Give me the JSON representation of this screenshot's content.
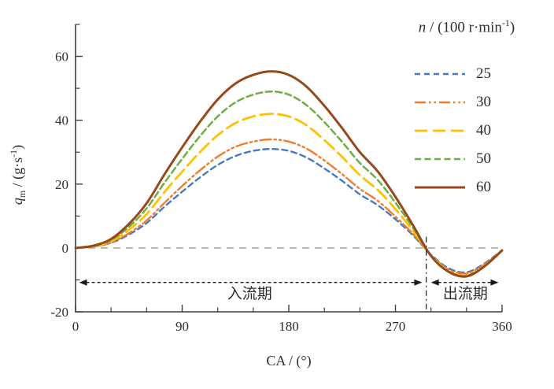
{
  "figure": {
    "background": "#ffffff",
    "axis_color": "#3d3d3d",
    "text_color": "#2e2e2e"
  },
  "chart_data": {
    "type": "line",
    "xlabel": "CA / (°)",
    "ylabel": {
      "var": "q",
      "sub": "m",
      "mid": " / (g·s",
      "sup": "-1",
      "post": ")"
    },
    "xlim": [
      0,
      360
    ],
    "ylim": [
      -20,
      70
    ],
    "x_ticks": [
      0,
      90,
      180,
      270,
      360
    ],
    "x_minor_step": 30,
    "y_ticks": [
      -20,
      0,
      20,
      40,
      60
    ],
    "y_minor_ticks": [
      -10,
      10,
      30,
      50,
      70
    ],
    "grid": false,
    "x": [
      0,
      15,
      30,
      45,
      60,
      75,
      90,
      105,
      120,
      135,
      150,
      165,
      180,
      195,
      210,
      225,
      240,
      255,
      270,
      285,
      300,
      315,
      330,
      345,
      360
    ],
    "series": [
      {
        "label": "25",
        "color": "#4778C6",
        "dash": "7 5",
        "width": 2.4,
        "values": [
          0,
          0.4,
          1.6,
          4.2,
          7.8,
          12.9,
          17.6,
          22.1,
          26,
          28.8,
          30.4,
          31,
          30.4,
          28.3,
          24.9,
          21,
          16.8,
          13.4,
          9,
          3.9,
          -2.1,
          -6.4,
          -7.6,
          -4.9,
          -0.7
        ]
      },
      {
        "label": "30",
        "color": "#ED7D31",
        "dash": "14 4 2.5 4 2.5 4",
        "width": 2.4,
        "values": [
          0,
          0.4,
          1.7,
          4.6,
          8.6,
          14.1,
          19.4,
          24.3,
          28.6,
          31.7,
          33.3,
          34,
          33.3,
          31.1,
          27.4,
          23.1,
          18.5,
          14.8,
          9.8,
          4.3,
          -2.2,
          -6.8,
          -8,
          -5.2,
          -0.7
        ]
      },
      {
        "label": "40",
        "color": "#FFC000",
        "dash": "16 7",
        "width": 2.8,
        "values": [
          0,
          0.5,
          2.1,
          5.7,
          10.6,
          17.5,
          23.9,
          30,
          35.3,
          39.1,
          41.2,
          42,
          41.2,
          38.4,
          33.8,
          28.5,
          22.8,
          18.2,
          12.2,
          5.3,
          -2.4,
          -7.3,
          -8.6,
          -5.6,
          -0.8
        ]
      },
      {
        "label": "50",
        "color": "#6EAE45",
        "dash": "8 4.5",
        "width": 2.5,
        "values": [
          0,
          0.6,
          2.5,
          6.6,
          12.4,
          20.4,
          27.9,
          35,
          41.2,
          45.6,
          48,
          49,
          48,
          44.7,
          39.4,
          33.2,
          26.6,
          21.3,
          14.2,
          6.2,
          -2.5,
          -7.4,
          -8.7,
          -5.7,
          -0.8
        ]
      },
      {
        "label": "60",
        "color": "#98491B",
        "dash": "",
        "width": 3,
        "values": [
          0,
          0.7,
          2.8,
          7.5,
          14,
          23,
          31.5,
          39.5,
          46.5,
          51.5,
          54.2,
          55.3,
          54.2,
          50.5,
          44.5,
          37.5,
          30,
          24,
          16,
          7,
          -2.5,
          -7.5,
          -8.9,
          -5.8,
          -0.8
        ]
      }
    ],
    "legend": {
      "position": "top-right",
      "title": {
        "var": "n",
        "mid": " / (100 r·min",
        "sup": "-1",
        "post": ")"
      }
    },
    "zero_line": {
      "y": 0,
      "color": "#a9a9a9",
      "dash": "9 7",
      "width": 1.6
    },
    "divider": {
      "x": 296,
      "y_top": 3.5,
      "color": "#2a2a2a",
      "dash": "7 4 2 4",
      "width": 1.3
    },
    "annotations": {
      "arrow_y": -10.8,
      "arrow_color": "#1a1a1a",
      "inflow": {
        "label": "入流期",
        "x_start": 3,
        "x_end": 292.5,
        "label_x": 147,
        "label_y": -15.8
      },
      "outflow": {
        "label": "出流期",
        "x_start": 300,
        "x_end": 357,
        "label_x": 329,
        "label_y": -15.8
      }
    }
  }
}
